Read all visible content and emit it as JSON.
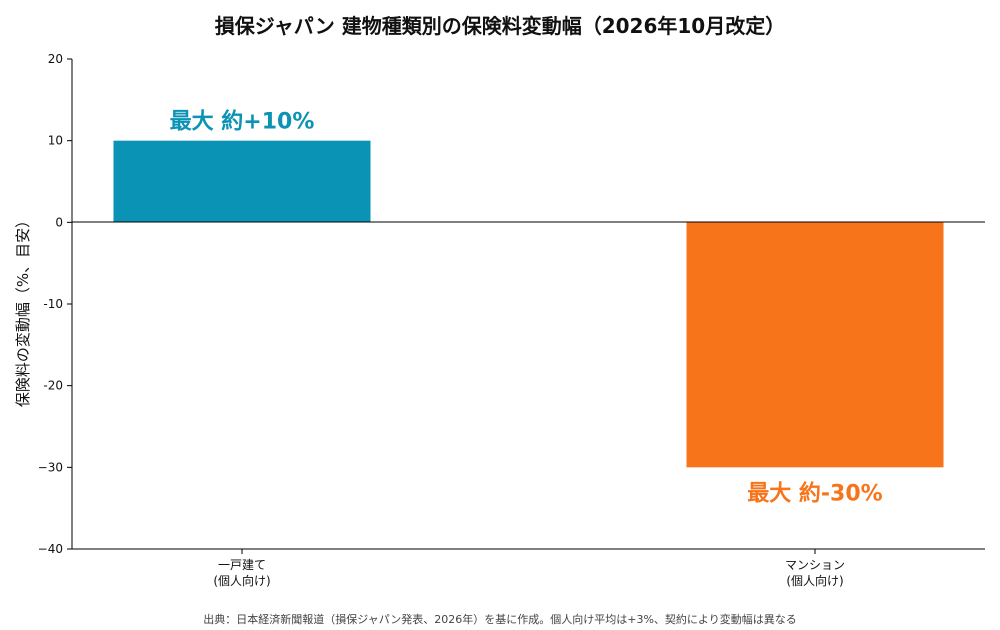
{
  "chart_data": {
    "type": "bar",
    "title": "損保ジャパン 建物種類別の保険料変動幅（2026年10月改定）",
    "ylabel": "保険料の変動幅（%、目安）",
    "ylim": [
      -40,
      20
    ],
    "yticks": [
      20,
      10,
      0,
      -10,
      -20,
      -30,
      -40
    ],
    "ytick_labels": [
      "20",
      "10",
      "0",
      "-10",
      "-20",
      "−30",
      "−40"
    ],
    "categories": [
      [
        "一戸建て",
        "(個人向け)"
      ],
      [
        "マンション",
        "(個人向け)"
      ]
    ],
    "values": [
      10,
      -30
    ],
    "data_labels": [
      "最大 約+10%",
      "最大 約-30%"
    ],
    "colors": [
      "#0a93b5",
      "#f7741b"
    ],
    "grid": false,
    "legend": "none"
  },
  "footer": {
    "source": "出典：日本経済新聞報道（損保ジャパン発表、2026年）を基に作成。個人向け平均は+3%、契約により変動幅は異なる"
  }
}
